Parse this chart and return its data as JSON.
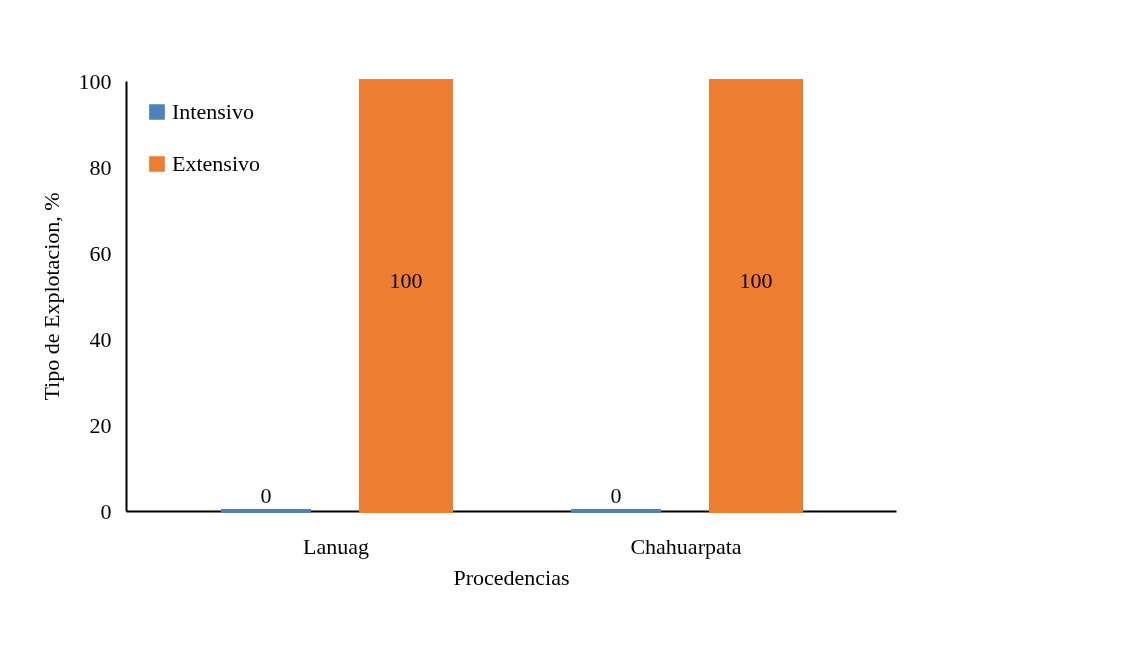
{
  "chart_data": {
    "type": "bar",
    "xlabel": "Procedencias",
    "ylabel": "Tipo de Explotacion, %",
    "categories": [
      "Lanuag",
      "Chahuarpata"
    ],
    "series": [
      {
        "name": "Intensivo",
        "color": "#4f81bd",
        "values": [
          0,
          0
        ]
      },
      {
        "name": "Extensivo",
        "color": "#ed7d31",
        "values": [
          100,
          100
        ]
      }
    ],
    "ylim": [
      0,
      100
    ],
    "yticks": [
      0,
      20,
      40,
      60,
      80,
      100
    ],
    "grid": false,
    "legend": "top left",
    "data_labels": true
  }
}
